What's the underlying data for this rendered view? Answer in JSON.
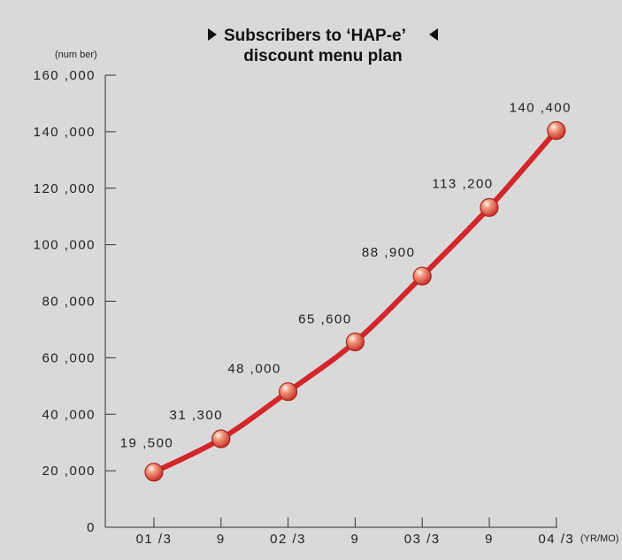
{
  "colors": {
    "background_panel": "#d9d9d9",
    "line": "#d3262a",
    "marker_fill": "#e8735b",
    "marker_highlight": "#fbe6dc",
    "axis": "#333333"
  },
  "chart_data": {
    "type": "line",
    "title": "Subscribers to ‘HAP-e’",
    "title_line2": "discount menu plan",
    "ylabel": "(num ber)",
    "xlabel": "(YR/MO)",
    "ylim": [
      0,
      160000
    ],
    "y_ticks": [
      0,
      20000,
      40000,
      60000,
      80000,
      100000,
      120000,
      140000,
      160000
    ],
    "y_tick_labels": [
      "0",
      "20 ,000",
      "40 ,000",
      "60 ,000",
      "80 ,000",
      "100 ,000",
      "120 ,000",
      "140 ,000",
      "160 ,000"
    ],
    "categories": [
      "01 /3",
      "9",
      "02 /3",
      "9",
      "03 /3",
      "9",
      "04 /3"
    ],
    "values": [
      19500,
      31300,
      48000,
      65600,
      88900,
      113200,
      140400
    ],
    "value_labels": [
      "19 ,500",
      "31 ,300",
      "48 ,000",
      "65 ,600",
      "88 ,900",
      "113 ,200",
      "140 ,400"
    ],
    "grid": false,
    "legend": "none"
  }
}
